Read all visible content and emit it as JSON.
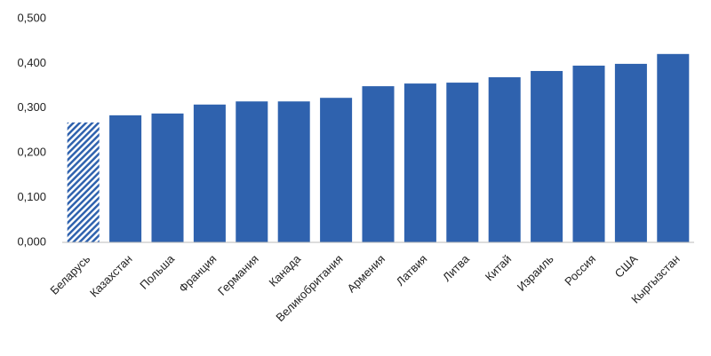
{
  "chart_data": {
    "type": "bar",
    "categories": [
      "Беларусь",
      "Казахстан",
      "Польша",
      "Франция",
      "Германия",
      "Канада",
      "Великобритания",
      "Армения",
      "Латвия",
      "Литва",
      "Китай",
      "Израиль",
      "Россия",
      "США",
      "Кыргызстан"
    ],
    "values": [
      0.268,
      0.284,
      0.288,
      0.308,
      0.315,
      0.315,
      0.323,
      0.349,
      0.355,
      0.357,
      0.369,
      0.383,
      0.395,
      0.399,
      0.421
    ],
    "bar_styles": [
      "hatched",
      "solid",
      "solid",
      "solid",
      "solid",
      "solid",
      "solid",
      "solid",
      "solid",
      "solid",
      "solid",
      "solid",
      "solid",
      "solid",
      "solid"
    ],
    "color": "#2f62ae",
    "ylim": [
      0,
      0.5
    ],
    "yticks": [
      {
        "value": 0,
        "label": "0,000"
      },
      {
        "value": 0.1,
        "label": "0,100"
      },
      {
        "value": 0.2,
        "label": "0,200"
      },
      {
        "value": 0.3,
        "label": "0,300"
      },
      {
        "value": 0.4,
        "label": "0,400"
      },
      {
        "value": 0.5,
        "label": "0,500"
      }
    ],
    "grid": false
  }
}
